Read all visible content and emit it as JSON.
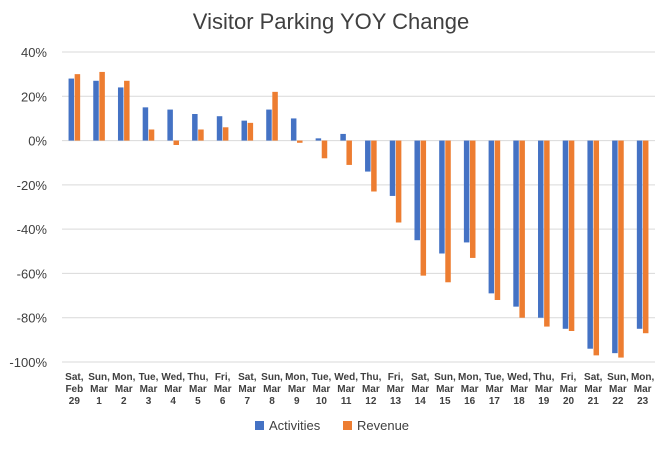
{
  "chart_data": {
    "type": "bar",
    "title": "Visitor Parking YOY Change",
    "xlabel": "",
    "ylabel": "",
    "ylim": [
      -100,
      40
    ],
    "yticks": [
      40,
      20,
      0,
      -20,
      -40,
      -60,
      -80,
      -100
    ],
    "ytick_labels": [
      "40%",
      "20%",
      "0%",
      "-20%",
      "-40%",
      "-60%",
      "-80%",
      "-100%"
    ],
    "grid": true,
    "legend_position": "bottom",
    "categories": [
      [
        "Sat,",
        "Feb",
        "29"
      ],
      [
        "Sun,",
        "Mar",
        "1"
      ],
      [
        "Mon,",
        "Mar",
        "2"
      ],
      [
        "Tue,",
        "Mar",
        "3"
      ],
      [
        "Wed,",
        "Mar",
        "4"
      ],
      [
        "Thu,",
        "Mar",
        "5"
      ],
      [
        "Fri,",
        "Mar",
        "6"
      ],
      [
        "Sat,",
        "Mar",
        "7"
      ],
      [
        "Sun,",
        "Mar",
        "8"
      ],
      [
        "Mon,",
        "Mar",
        "9"
      ],
      [
        "Tue,",
        "Mar",
        "10"
      ],
      [
        "Wed,",
        "Mar",
        "11"
      ],
      [
        "Thu,",
        "Mar",
        "12"
      ],
      [
        "Fri,",
        "Mar",
        "13"
      ],
      [
        "Sat,",
        "Mar",
        "14"
      ],
      [
        "Sun,",
        "Mar",
        "15"
      ],
      [
        "Mon,",
        "Mar",
        "16"
      ],
      [
        "Tue,",
        "Mar",
        "17"
      ],
      [
        "Wed,",
        "Mar",
        "18"
      ],
      [
        "Thu,",
        "Mar",
        "19"
      ],
      [
        "Fri,",
        "Mar",
        "20"
      ],
      [
        "Sat,",
        "Mar",
        "21"
      ],
      [
        "Sun,",
        "Mar",
        "22"
      ],
      [
        "Mon,",
        "Mar",
        "23"
      ]
    ],
    "series": [
      {
        "name": "Activities",
        "color": "#4472C4",
        "values": [
          28,
          27,
          24,
          15,
          14,
          12,
          11,
          9,
          14,
          10,
          1,
          3,
          -14,
          -25,
          -45,
          -51,
          -46,
          -69,
          -75,
          -80,
          -85,
          -94,
          -96,
          -85
        ]
      },
      {
        "name": "Revenue",
        "color": "#ED7D31",
        "values": [
          30,
          31,
          27,
          5,
          -2,
          5,
          6,
          8,
          22,
          -1,
          -8,
          -11,
          -23,
          -37,
          -61,
          -64,
          -53,
          -72,
          -80,
          -84,
          -86,
          -97,
          -98,
          -87
        ]
      }
    ]
  }
}
